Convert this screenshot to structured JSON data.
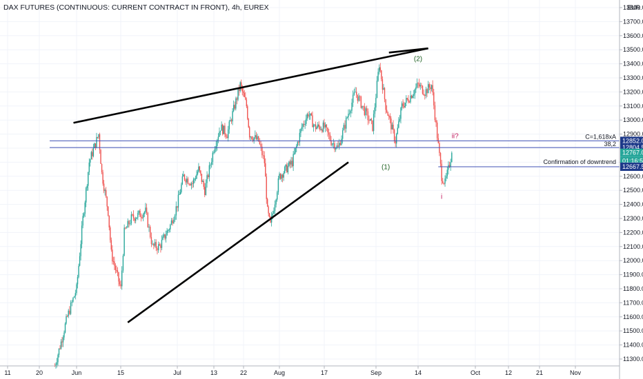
{
  "chart_data": {
    "type": "candlestick",
    "title": "DAX FUTURES (CONTINUOUS: CURRENT CONTRACT IN FRONT), 4h, EUREX",
    "currency": "EUR",
    "ylim": [
      11250,
      13800
    ],
    "y_ticks": [
      11300,
      11400,
      11500,
      11600,
      11700,
      11800,
      11900,
      12000,
      12100,
      12200,
      12300,
      12400,
      12500,
      12600,
      12700,
      12800,
      12900,
      13000,
      13100,
      13200,
      13300,
      13400,
      13500,
      13600,
      13700,
      13800
    ],
    "y_tick_labels": [
      "11300.0",
      "11400.0",
      "11500.0",
      "11600.0",
      "11700.0",
      "11800.0",
      "11900.0",
      "12000.0",
      "12100.0",
      "12200.0",
      "12300.0",
      "12400.0",
      "12500.0",
      "12600.0",
      "12700.0",
      "12800.0",
      "12900.0",
      "13000.0",
      "13100.0",
      "13200.0",
      "13300.0",
      "13400.0",
      "13500.0",
      "13600.0",
      "13700.0",
      "13800.0"
    ],
    "x_ticks": [
      {
        "label": "11",
        "date": "2020-05-11"
      },
      {
        "label": "20",
        "date": "2020-05-20"
      },
      {
        "label": "Jun",
        "date": "2020-06-01"
      },
      {
        "label": "15",
        "date": "2020-06-15"
      },
      {
        "label": "Jul",
        "date": "2020-07-01"
      },
      {
        "label": "13",
        "date": "2020-07-13"
      },
      {
        "label": "22",
        "date": "2020-07-22"
      },
      {
        "label": "Aug",
        "date": "2020-08-03"
      },
      {
        "label": "17",
        "date": "2020-08-17"
      },
      {
        "label": "Sep",
        "date": "2020-09-01"
      },
      {
        "label": "14",
        "date": "2020-09-14"
      },
      {
        "label": "Oct",
        "date": "2020-10-01"
      },
      {
        "label": "12",
        "date": "2020-10-12"
      },
      {
        "label": "21",
        "date": "2020-10-21"
      },
      {
        "label": "Nov",
        "date": "2020-11-02"
      }
    ],
    "price_path": [
      {
        "date": "2020-05-25",
        "close": 11250
      },
      {
        "date": "2020-05-27",
        "close": 11420
      },
      {
        "date": "2020-05-29",
        "close": 11600
      },
      {
        "date": "2020-06-01",
        "close": 11800
      },
      {
        "date": "2020-06-03",
        "close": 12300
      },
      {
        "date": "2020-06-05",
        "close": 12700
      },
      {
        "date": "2020-06-08",
        "close": 12900
      },
      {
        "date": "2020-06-09",
        "close": 12620
      },
      {
        "date": "2020-06-11",
        "close": 12350
      },
      {
        "date": "2020-06-12",
        "close": 12050
      },
      {
        "date": "2020-06-15",
        "close": 11800
      },
      {
        "date": "2020-06-16",
        "close": 12200
      },
      {
        "date": "2020-06-18",
        "close": 12300
      },
      {
        "date": "2020-06-22",
        "close": 12350
      },
      {
        "date": "2020-06-24",
        "close": 12100
      },
      {
        "date": "2020-06-26",
        "close": 12100
      },
      {
        "date": "2020-06-29",
        "close": 12250
      },
      {
        "date": "2020-07-01",
        "close": 12400
      },
      {
        "date": "2020-07-03",
        "close": 12600
      },
      {
        "date": "2020-07-06",
        "close": 12550
      },
      {
        "date": "2020-07-08",
        "close": 12650
      },
      {
        "date": "2020-07-10",
        "close": 12500
      },
      {
        "date": "2020-07-13",
        "close": 12800
      },
      {
        "date": "2020-07-15",
        "close": 12950
      },
      {
        "date": "2020-07-17",
        "close": 12900
      },
      {
        "date": "2020-07-21",
        "close": 13250
      },
      {
        "date": "2020-07-23",
        "close": 13100
      },
      {
        "date": "2020-07-24",
        "close": 12900
      },
      {
        "date": "2020-07-27",
        "close": 12850
      },
      {
        "date": "2020-07-29",
        "close": 12700
      },
      {
        "date": "2020-07-30",
        "close": 12350
      },
      {
        "date": "2020-07-31",
        "close": 12250
      },
      {
        "date": "2020-08-03",
        "close": 12600
      },
      {
        "date": "2020-08-05",
        "close": 12650
      },
      {
        "date": "2020-08-07",
        "close": 12700
      },
      {
        "date": "2020-08-10",
        "close": 12950
      },
      {
        "date": "2020-08-12",
        "close": 13050
      },
      {
        "date": "2020-08-14",
        "close": 12950
      },
      {
        "date": "2020-08-17",
        "close": 12950
      },
      {
        "date": "2020-08-19",
        "close": 12850
      },
      {
        "date": "2020-08-21",
        "close": 12800
      },
      {
        "date": "2020-08-24",
        "close": 13050
      },
      {
        "date": "2020-08-26",
        "close": 13200
      },
      {
        "date": "2020-08-28",
        "close": 13100
      },
      {
        "date": "2020-08-31",
        "close": 12950
      },
      {
        "date": "2020-09-02",
        "close": 13400
      },
      {
        "date": "2020-09-04",
        "close": 13100
      },
      {
        "date": "2020-09-07",
        "close": 12850
      },
      {
        "date": "2020-09-09",
        "close": 13100
      },
      {
        "date": "2020-09-11",
        "close": 13150
      },
      {
        "date": "2020-09-14",
        "close": 13250
      },
      {
        "date": "2020-09-16",
        "close": 13200
      },
      {
        "date": "2020-09-18",
        "close": 13250
      },
      {
        "date": "2020-09-21",
        "close": 12600
      },
      {
        "date": "2020-09-22",
        "close": 12550
      },
      {
        "date": "2020-09-23",
        "close": 12650
      },
      {
        "date": "2020-09-24",
        "close": 12767
      }
    ],
    "trendlines": [
      {
        "name": "upper-wedge-line",
        "from": {
          "date": "2020-05-31",
          "price": 12980
        },
        "to": {
          "date": "2020-09-17",
          "price": 13510
        }
      },
      {
        "name": "lower-wedge-line",
        "from": {
          "date": "2020-06-17",
          "price": 11560
        },
        "to": {
          "date": "2020-08-24",
          "price": 12700
        }
      },
      {
        "name": "upper-wedge-top-segment",
        "from": {
          "date": "2020-09-05",
          "price": 13480
        },
        "to": {
          "date": "2020-09-17",
          "price": 13510
        }
      }
    ],
    "horizontal_levels": [
      {
        "price": 12852.0,
        "label": "C=1,618xA",
        "badge": "12852.0"
      },
      {
        "price": 12804.5,
        "label": "38,2",
        "badge": "12804.5"
      },
      {
        "price": 12667.5,
        "label": "Confirmation of downtrend",
        "badge": "12667.5"
      }
    ],
    "last_price": {
      "value": "12767.0",
      "countdown": "01:16:51"
    },
    "wave_labels": [
      {
        "text": "(2)",
        "date": "2020-09-14",
        "price": 13420,
        "color": "#1b5e20"
      },
      {
        "text": "(1)",
        "date": "2020-09-04",
        "price": 12650,
        "color": "#1b5e20"
      },
      {
        "text": "ii?",
        "date": "2020-09-25",
        "price": 12870,
        "color": "#c2185b"
      },
      {
        "text": "i",
        "date": "2020-09-21",
        "price": 12440,
        "color": "#c2185b"
      }
    ],
    "colors": {
      "up": "#26a69a",
      "down": "#ef5350",
      "level": "#3f51b5",
      "badge": "#1e3a8a",
      "last": "#26a69a",
      "trend": "#000000"
    },
    "grid": true,
    "legend": "none"
  }
}
